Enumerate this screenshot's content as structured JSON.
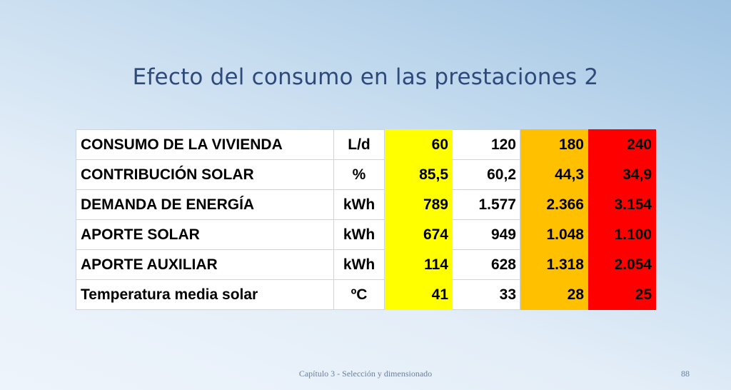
{
  "slide": {
    "title": "Efecto del consumo en las prestaciones 2",
    "footer": "Capítulo 3 - Selección y dimensionado",
    "page_number": "88"
  },
  "table": {
    "column_colors": [
      "#ffff00",
      "#ffffff",
      "#ffc000",
      "#ff0000"
    ],
    "rows": [
      {
        "label": "CONSUMO DE LA VIVIENDA",
        "unit": "L/d",
        "values": [
          "60",
          "120",
          "180",
          "240"
        ]
      },
      {
        "label": "CONTRIBUCIÓN SOLAR",
        "unit": "%",
        "values": [
          "85,5",
          "60,2",
          "44,3",
          "34,9"
        ]
      },
      {
        "label": "DEMANDA DE ENERGÍA",
        "unit": "kWh",
        "values": [
          "789",
          "1.577",
          "2.366",
          "3.154"
        ]
      },
      {
        "label": "APORTE SOLAR",
        "unit": "kWh",
        "values": [
          "674",
          "949",
          "1.048",
          "1.100"
        ]
      },
      {
        "label": "APORTE AUXILIAR",
        "unit": "kWh",
        "values": [
          "114",
          "628",
          "1.318",
          "2.054"
        ]
      },
      {
        "label": "Temperatura media solar",
        "unit": "ºC",
        "values": [
          "41",
          "33",
          "28",
          "25"
        ]
      }
    ]
  }
}
